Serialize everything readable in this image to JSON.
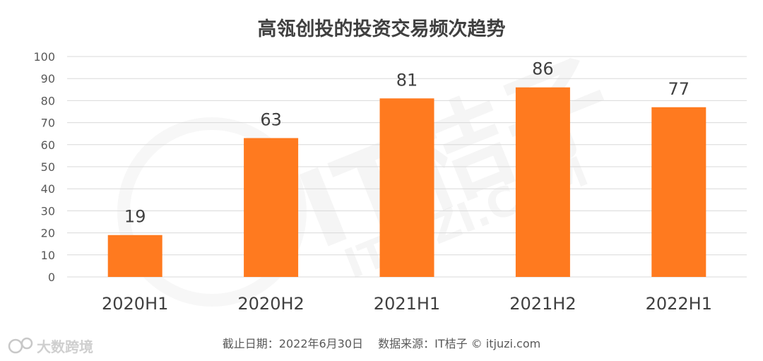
{
  "chart_data": {
    "type": "bar",
    "title": "高瓴创投的投资交易频次趋势",
    "categories": [
      "2020H1",
      "2020H2",
      "2021H1",
      "2021H2",
      "2022H1"
    ],
    "values": [
      19,
      63,
      81,
      86,
      77
    ],
    "ylim": [
      0,
      100
    ],
    "yticks": [
      0,
      10,
      20,
      30,
      40,
      50,
      60,
      70,
      80,
      90,
      100
    ],
    "xlabel": "",
    "ylabel": "",
    "grid": true,
    "bar_color": "#ff7a1f"
  },
  "footer": {
    "note": "截止日期：2022年6月30日　 数据来源：IT桔子 © itjuzi.com"
  },
  "watermark": {
    "main": "IT桔子",
    "sub": "ITJUZI.COM"
  },
  "corner_logo": {
    "text": "大数跨境",
    "icon": "logo-icon"
  }
}
